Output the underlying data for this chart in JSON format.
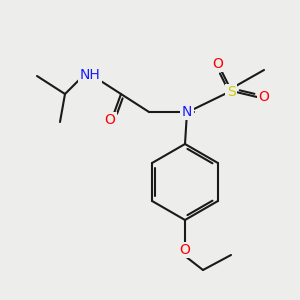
{
  "bg_color": "#ededeb",
  "bond_color": "#1a1a1a",
  "bond_lw": 1.5,
  "atom_colors": {
    "N": "#1a1aff",
    "O": "#ff0000",
    "S": "#cccc00",
    "H": "#4fa0a0",
    "C": "#1a1a1a"
  },
  "font_size": 10,
  "font_size_small": 9
}
